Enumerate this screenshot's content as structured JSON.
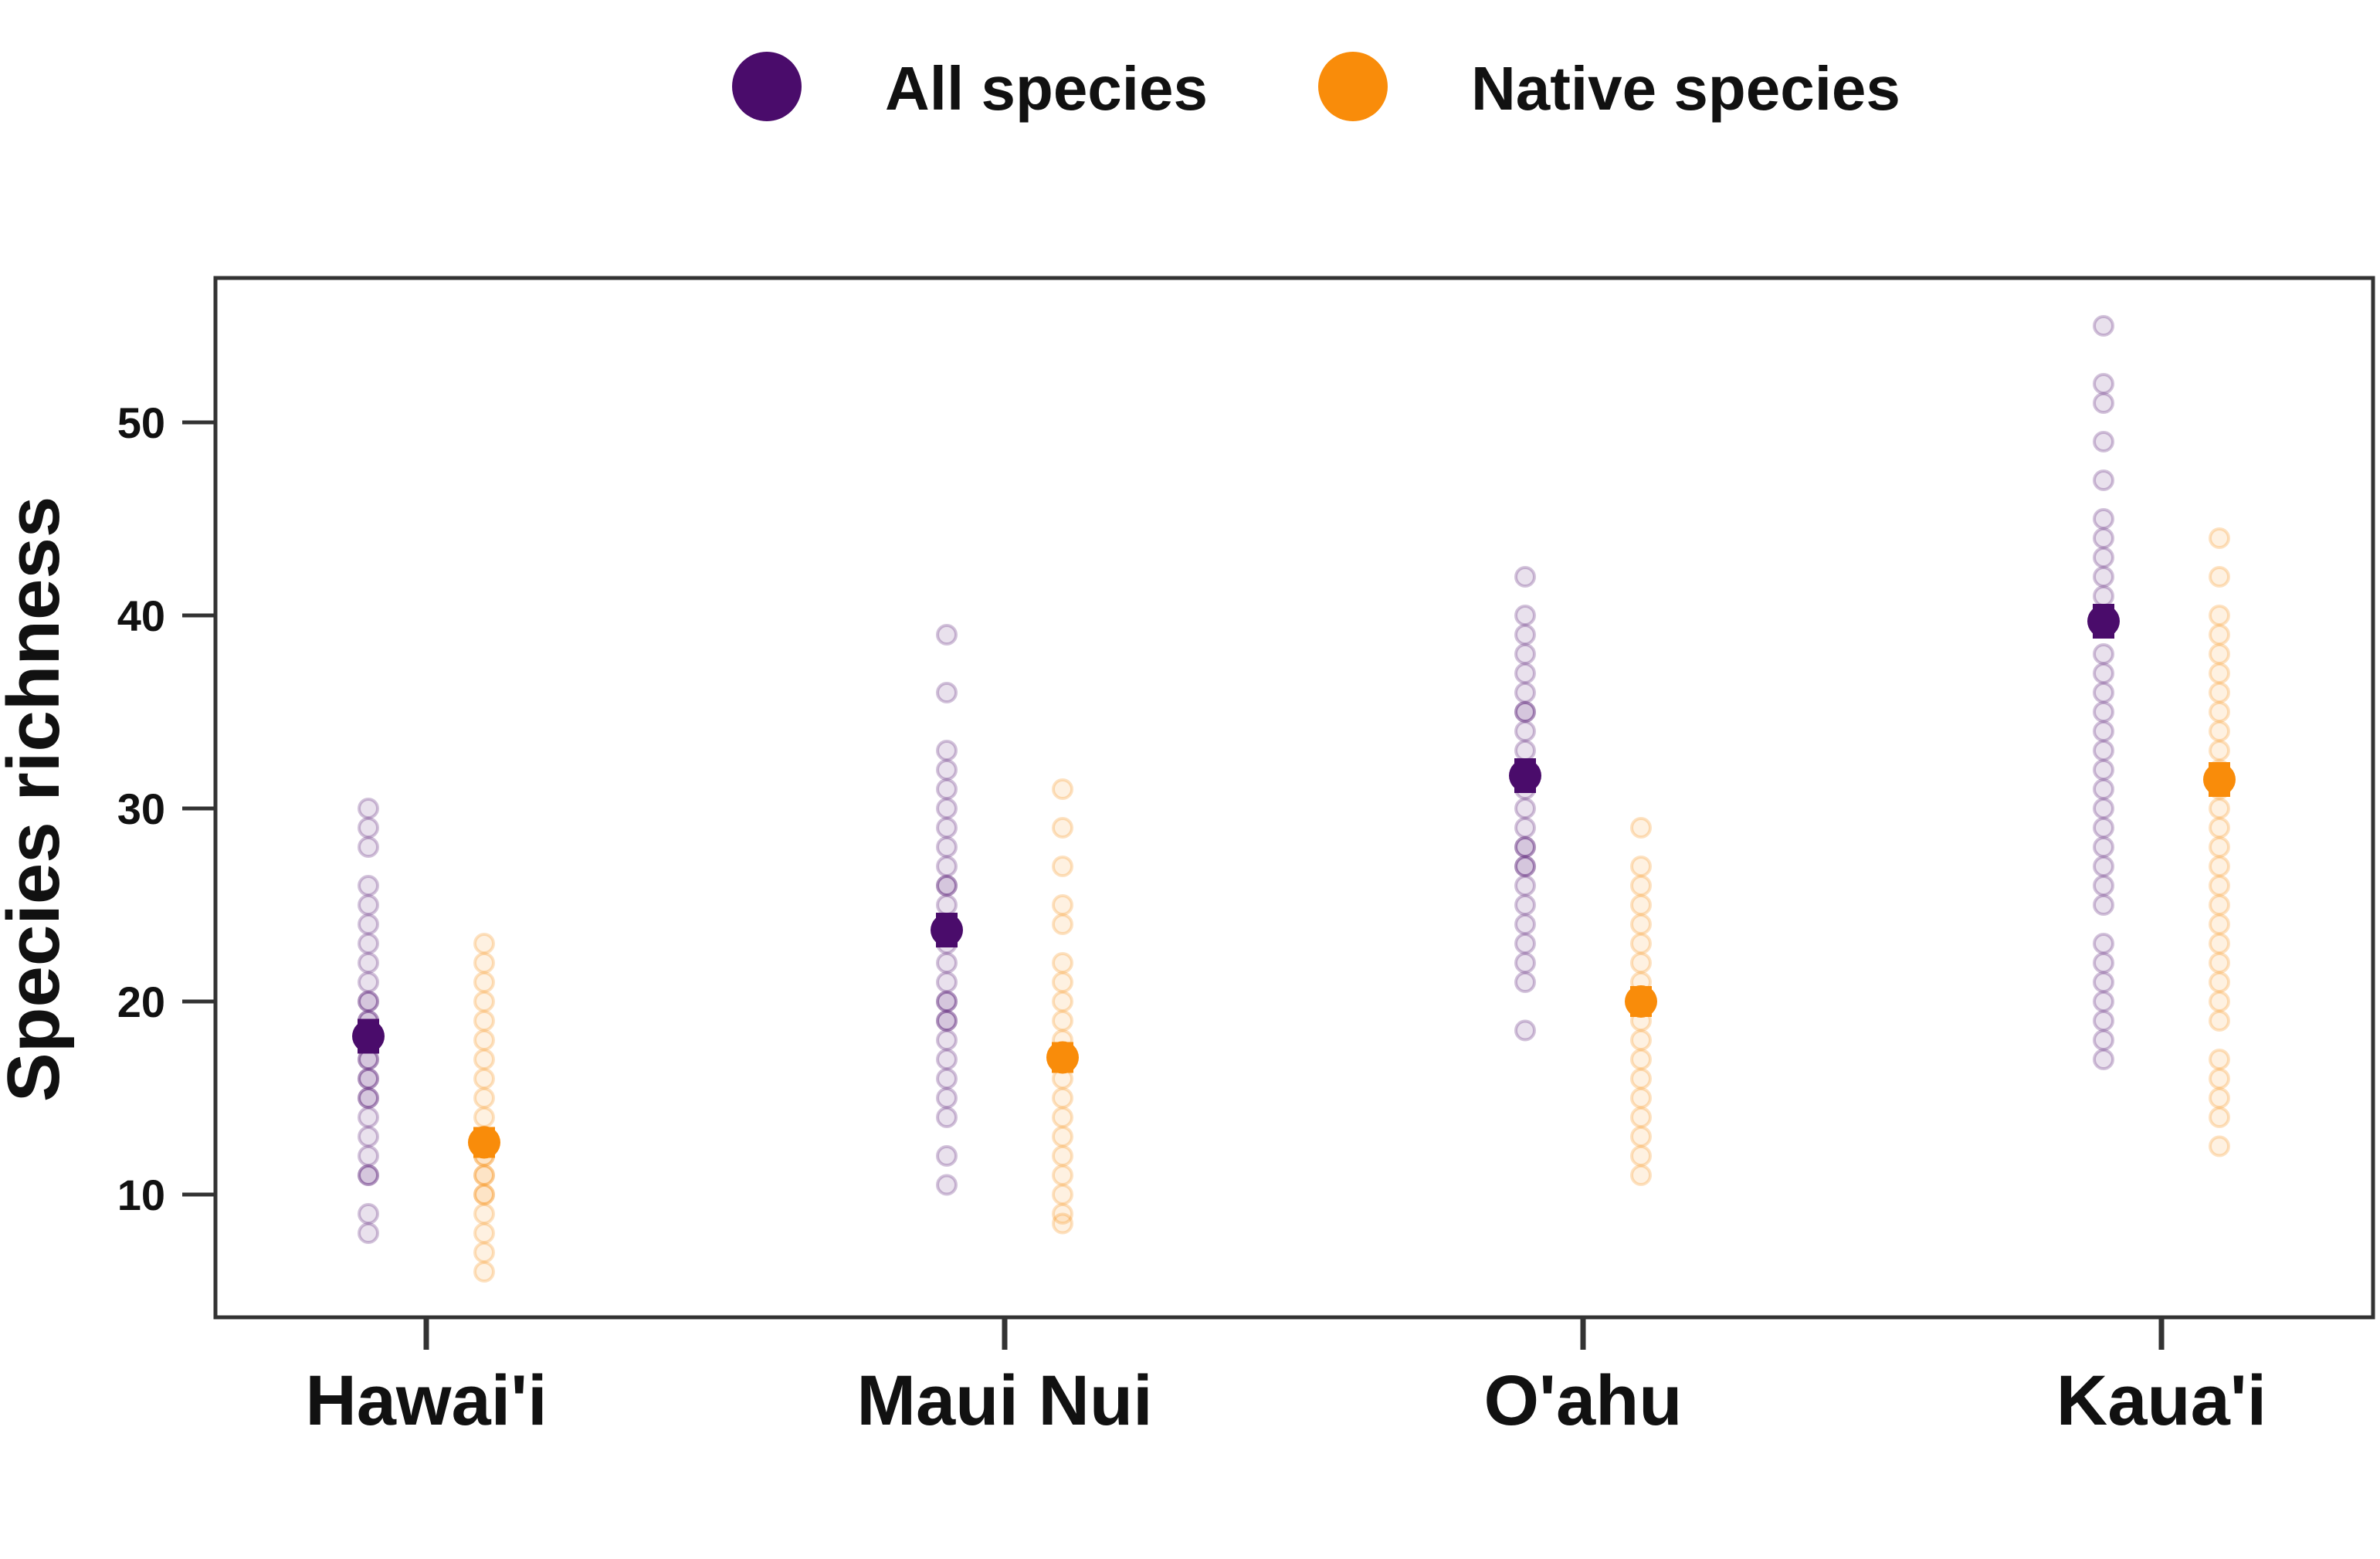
{
  "chart_data": {
    "type": "scatter",
    "title": "",
    "xlabel": "",
    "ylabel": "Species richness",
    "ylim": [
      4,
      58
    ],
    "yticks": [
      10,
      20,
      30,
      40,
      50
    ],
    "categories": [
      "Hawai'i",
      "Maui Nui",
      "O'ahu",
      "Kaua'i"
    ],
    "grid": false,
    "legend_position": "top-center",
    "series": [
      {
        "name": "All species",
        "color": "#4a0c6b",
        "means": [
          18.2,
          23.7,
          31.7,
          39.7
        ],
        "errors": [
          0.9,
          0.9,
          0.9,
          0.9
        ],
        "points": [
          [
            8,
            9,
            11,
            11,
            12,
            13,
            14,
            15,
            15,
            16,
            16,
            17,
            17,
            18,
            18,
            19,
            19,
            20,
            20,
            21,
            22,
            23,
            24,
            25,
            26,
            28,
            29,
            30
          ],
          [
            10.5,
            12,
            14,
            15,
            16,
            17,
            18,
            19,
            19,
            20,
            20,
            21,
            22,
            23,
            24,
            25,
            26,
            26,
            27,
            28,
            29,
            30,
            31,
            32,
            33,
            36,
            39
          ],
          [
            18.5,
            21,
            22,
            23,
            24,
            25,
            26,
            27,
            27,
            28,
            28,
            29,
            30,
            31,
            32,
            33,
            34,
            35,
            35,
            36,
            37,
            38,
            39,
            40,
            42
          ],
          [
            17,
            18,
            19,
            20,
            21,
            22,
            23,
            25,
            26,
            27,
            28,
            29,
            30,
            31,
            32,
            33,
            34,
            35,
            36,
            37,
            38,
            40,
            41,
            42,
            43,
            44,
            45,
            47,
            49,
            51,
            52,
            55
          ]
        ]
      },
      {
        "name": "Native species",
        "color": "#f98c0a",
        "means": [
          12.7,
          17.1,
          20.0,
          31.5
        ],
        "errors": [
          0.8,
          0.8,
          0.8,
          0.9
        ],
        "points": [
          [
            6,
            7,
            8,
            9,
            10,
            10,
            11,
            11,
            12,
            12,
            13,
            13,
            14,
            15,
            16,
            17,
            18,
            19,
            20,
            21,
            22,
            23
          ],
          [
            8.5,
            9,
            10,
            11,
            12,
            13,
            14,
            15,
            16,
            17,
            18,
            19,
            20,
            21,
            22,
            24,
            25,
            27,
            29,
            31
          ],
          [
            11,
            12,
            13,
            14,
            15,
            16,
            17,
            18,
            19,
            20,
            21,
            22,
            23,
            24,
            25,
            26,
            27,
            29
          ],
          [
            12.5,
            14,
            15,
            16,
            17,
            19,
            20,
            21,
            22,
            23,
            24,
            25,
            26,
            27,
            28,
            29,
            30,
            31,
            32,
            33,
            34,
            35,
            36,
            37,
            38,
            39,
            40,
            42,
            44
          ]
        ]
      }
    ]
  }
}
